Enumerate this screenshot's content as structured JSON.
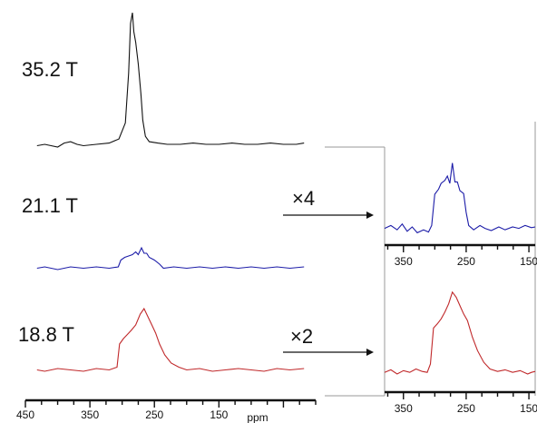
{
  "chart_data": [
    {
      "type": "line",
      "title": "",
      "xlabel": "ppm",
      "ylabel": "",
      "x_reversed": true,
      "xlim": [
        450,
        0
      ],
      "x_ticks": [
        450,
        350,
        250,
        150
      ],
      "x_tick_labels": [
        "450",
        "350",
        "250",
        "150"
      ],
      "series": [
        {
          "name": "35.2 T",
          "color": "#111111",
          "label": "35.2 T",
          "points": [
            [
              432,
              0.01
            ],
            [
              420,
              0.02
            ],
            [
              400,
              0.0
            ],
            [
              390,
              0.03
            ],
            [
              380,
              0.04
            ],
            [
              370,
              0.02
            ],
            [
              360,
              0.01
            ],
            [
              340,
              0.02
            ],
            [
              320,
              0.03
            ],
            [
              305,
              0.06
            ],
            [
              295,
              0.18
            ],
            [
              290,
              0.55
            ],
            [
              287,
              0.92
            ],
            [
              284,
              1.0
            ],
            [
              282,
              0.86
            ],
            [
              279,
              0.78
            ],
            [
              275,
              0.62
            ],
            [
              271,
              0.4
            ],
            [
              268,
              0.2
            ],
            [
              264,
              0.08
            ],
            [
              258,
              0.04
            ],
            [
              245,
              0.03
            ],
            [
              230,
              0.02
            ],
            [
              210,
              0.02
            ],
            [
              190,
              0.03
            ],
            [
              170,
              0.02
            ],
            [
              150,
              0.02
            ],
            [
              130,
              0.03
            ],
            [
              110,
              0.02
            ],
            [
              90,
              0.02
            ],
            [
              70,
              0.03
            ],
            [
              50,
              0.02
            ],
            [
              30,
              0.02
            ],
            [
              18,
              0.03
            ]
          ]
        },
        {
          "name": "21.1 T",
          "color": "#1c1ca8",
          "label": "21.1 T",
          "points": [
            [
              432,
              0.01
            ],
            [
              420,
              0.02
            ],
            [
              400,
              0.0
            ],
            [
              380,
              0.02
            ],
            [
              360,
              0.01
            ],
            [
              340,
              0.02
            ],
            [
              320,
              0.01
            ],
            [
              306,
              0.02
            ],
            [
              302,
              0.07
            ],
            [
              296,
              0.09
            ],
            [
              290,
              0.1
            ],
            [
              284,
              0.11
            ],
            [
              279,
              0.13
            ],
            [
              275,
              0.11
            ],
            [
              270,
              0.16
            ],
            [
              266,
              0.12
            ],
            [
              262,
              0.12
            ],
            [
              258,
              0.09
            ],
            [
              250,
              0.07
            ],
            [
              242,
              0.04
            ],
            [
              236,
              0.01
            ],
            [
              220,
              0.02
            ],
            [
              200,
              0.01
            ],
            [
              180,
              0.02
            ],
            [
              160,
              0.01
            ],
            [
              140,
              0.02
            ],
            [
              120,
              0.01
            ],
            [
              100,
              0.02
            ],
            [
              80,
              0.01
            ],
            [
              60,
              0.02
            ],
            [
              40,
              0.01
            ],
            [
              18,
              0.02
            ]
          ]
        },
        {
          "name": "18.8 T",
          "color": "#c0282a",
          "label": "18.8 T",
          "points": [
            [
              432,
              0.01
            ],
            [
              420,
              0.0
            ],
            [
              400,
              0.02
            ],
            [
              380,
              0.01
            ],
            [
              360,
              0.0
            ],
            [
              340,
              0.02
            ],
            [
              320,
              0.01
            ],
            [
              308,
              0.03
            ],
            [
              304,
              0.2
            ],
            [
              298,
              0.24
            ],
            [
              292,
              0.27
            ],
            [
              286,
              0.3
            ],
            [
              279,
              0.34
            ],
            [
              272,
              0.42
            ],
            [
              266,
              0.46
            ],
            [
              260,
              0.4
            ],
            [
              254,
              0.34
            ],
            [
              248,
              0.28
            ],
            [
              242,
              0.2
            ],
            [
              234,
              0.12
            ],
            [
              224,
              0.06
            ],
            [
              212,
              0.03
            ],
            [
              200,
              0.01
            ],
            [
              180,
              0.02
            ],
            [
              160,
              0.0
            ],
            [
              140,
              0.01
            ],
            [
              120,
              0.02
            ],
            [
              100,
              0.01
            ],
            [
              80,
              0.0
            ],
            [
              60,
              0.02
            ],
            [
              40,
              0.01
            ],
            [
              18,
              0.02
            ]
          ]
        }
      ]
    },
    {
      "type": "line",
      "title": "",
      "magnification": "×4",
      "xlim": [
        380,
        140
      ],
      "x_ticks": [
        350,
        250,
        150
      ],
      "x_tick_labels": [
        "350",
        "250",
        "150"
      ],
      "series": [
        {
          "name": "21.1 T",
          "color": "#1c1ca8",
          "points": [
            [
              380,
              0.08
            ],
            [
              370,
              0.12
            ],
            [
              360,
              0.06
            ],
            [
              352,
              0.14
            ],
            [
              344,
              0.04
            ],
            [
              336,
              0.1
            ],
            [
              328,
              0.02
            ],
            [
              318,
              0.06
            ],
            [
              310,
              0.03
            ],
            [
              305,
              0.12
            ],
            [
              300,
              0.55
            ],
            [
              294,
              0.62
            ],
            [
              290,
              0.7
            ],
            [
              284,
              0.74
            ],
            [
              280,
              0.8
            ],
            [
              276,
              0.7
            ],
            [
              272,
              0.98
            ],
            [
              268,
              0.72
            ],
            [
              264,
              0.72
            ],
            [
              260,
              0.6
            ],
            [
              254,
              0.56
            ],
            [
              250,
              0.3
            ],
            [
              246,
              0.12
            ],
            [
              238,
              0.06
            ],
            [
              228,
              0.12
            ],
            [
              220,
              0.08
            ],
            [
              210,
              0.05
            ],
            [
              198,
              0.1
            ],
            [
              188,
              0.06
            ],
            [
              176,
              0.1
            ],
            [
              166,
              0.08
            ],
            [
              156,
              0.12
            ],
            [
              146,
              0.09
            ],
            [
              140,
              0.1
            ]
          ]
        }
      ]
    },
    {
      "type": "line",
      "title": "",
      "magnification": "×2",
      "xlim": [
        380,
        140
      ],
      "x_ticks": [
        350,
        250,
        150
      ],
      "x_tick_labels": [
        "350",
        "250",
        "150"
      ],
      "series": [
        {
          "name": "18.8 T",
          "color": "#c0282a",
          "points": [
            [
              380,
              0.02
            ],
            [
              370,
              0.05
            ],
            [
              360,
              0.0
            ],
            [
              350,
              0.04
            ],
            [
              340,
              0.02
            ],
            [
              330,
              0.06
            ],
            [
              320,
              0.03
            ],
            [
              312,
              0.02
            ],
            [
              307,
              0.12
            ],
            [
              302,
              0.55
            ],
            [
              296,
              0.6
            ],
            [
              290,
              0.66
            ],
            [
              284,
              0.74
            ],
            [
              278,
              0.84
            ],
            [
              272,
              0.98
            ],
            [
              266,
              0.92
            ],
            [
              260,
              0.82
            ],
            [
              254,
              0.72
            ],
            [
              248,
              0.64
            ],
            [
              240,
              0.44
            ],
            [
              232,
              0.28
            ],
            [
              222,
              0.14
            ],
            [
              212,
              0.06
            ],
            [
              200,
              0.03
            ],
            [
              188,
              0.05
            ],
            [
              176,
              0.02
            ],
            [
              164,
              0.04
            ],
            [
              152,
              0.0
            ],
            [
              146,
              0.02
            ],
            [
              140,
              0.03
            ]
          ]
        }
      ]
    }
  ]
}
